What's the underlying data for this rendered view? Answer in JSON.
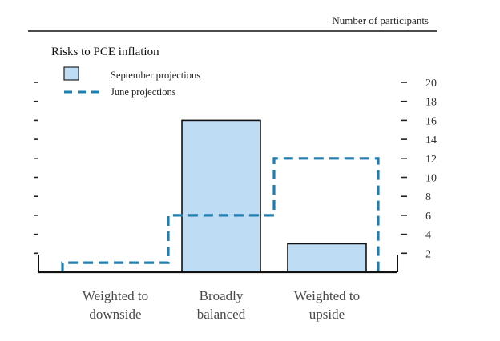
{
  "header_note": "Number of participants",
  "chart_data": {
    "type": "bar",
    "title": "Risks to PCE inflation",
    "categories": [
      {
        "line1": "Weighted to",
        "line2": "downside"
      },
      {
        "line1": "Broadly",
        "line2": "balanced"
      },
      {
        "line1": "Weighted to",
        "line2": "upside"
      }
    ],
    "series": [
      {
        "name": "September projections",
        "style": "bar",
        "color": "#bfdcf5",
        "values": [
          0,
          16,
          3
        ]
      },
      {
        "name": "June projections",
        "style": "dashed-step",
        "color": "#1f7fb0",
        "values": [
          1,
          6,
          12
        ]
      }
    ],
    "yticks": [
      "2",
      "4",
      "6",
      "8",
      "10",
      "12",
      "14",
      "16",
      "18",
      "20"
    ],
    "ylim": [
      0,
      20
    ],
    "grid": false,
    "legend_position": "top-left"
  }
}
